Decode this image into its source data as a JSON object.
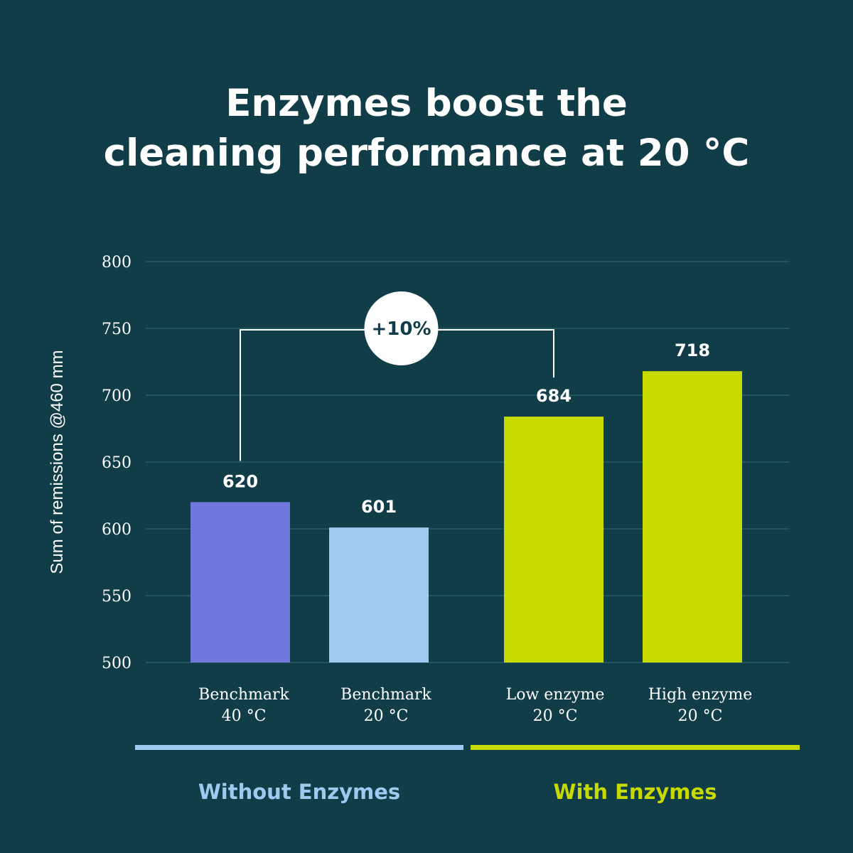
{
  "title_lines": [
    "Enzymes boost the",
    "cleaning performance at 20 °C"
  ],
  "colors": {
    "background": "#113d49",
    "gridline": "#2f6470",
    "benchmark_40": "#6f79db",
    "benchmark_20": "#9fcaf0",
    "enzyme": "#c6da00",
    "text": "#ffffff"
  },
  "chart_data": {
    "type": "bar",
    "title": "Enzymes boost the cleaning performance at 20 °C",
    "ylabel": "Sum of remissions @460 mm",
    "xlabel": "",
    "ylim": [
      500,
      800
    ],
    "yticks": [
      "500",
      "550",
      "600",
      "650",
      "700",
      "750",
      "800"
    ],
    "grid": true,
    "categories": [
      {
        "lines": [
          "Benchmark",
          "40 °C"
        ]
      },
      {
        "lines": [
          "Benchmark",
          "20 °C"
        ]
      },
      {
        "lines": [
          "Low enzyme",
          "20 °C"
        ]
      },
      {
        "lines": [
          "High enzyme",
          "20 °C"
        ]
      }
    ],
    "values": [
      620,
      601,
      684,
      718
    ],
    "value_labels": [
      "620",
      "601",
      "684",
      "718"
    ],
    "bar_colors": [
      "#6f79db",
      "#9fcaf0",
      "#c6da00",
      "#c6da00"
    ],
    "annotation": {
      "text": "+10%",
      "from_bar": 0,
      "to_bar": 2,
      "level": 750
    },
    "groups": [
      {
        "label": "Without Enzymes",
        "color": "#9fcaf0",
        "bars": [
          0,
          1
        ]
      },
      {
        "label": "With Enzymes",
        "color": "#c6da00",
        "bars": [
          2,
          3
        ]
      }
    ]
  }
}
